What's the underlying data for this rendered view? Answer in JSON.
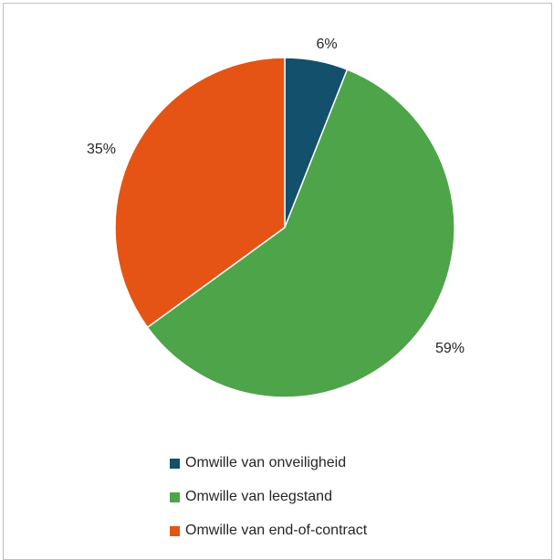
{
  "chart_data": {
    "type": "pie",
    "title": "",
    "slices": [
      {
        "label": "Omwille van onveiligheid",
        "value": 6,
        "display": "6%",
        "color": "#12506b"
      },
      {
        "label": "Omwille van leegstand",
        "value": 59,
        "display": "59%",
        "color": "#4ea449"
      },
      {
        "label": "Omwille van end-of-contract",
        "value": 35,
        "display": "35%",
        "color": "#e55414"
      }
    ],
    "start_angle": "12 o'clock",
    "direction": "clockwise",
    "legend_position": "bottom"
  }
}
